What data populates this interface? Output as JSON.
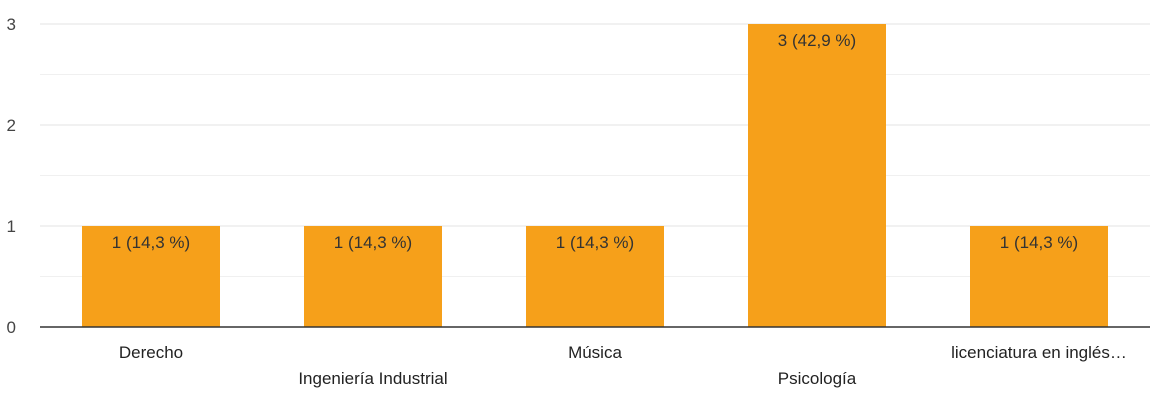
{
  "chart_data": {
    "type": "bar",
    "categories": [
      "Derecho",
      "Ingeniería Industrial",
      "Música",
      "Psicología",
      "licenciatura en inglés…"
    ],
    "values": [
      1,
      1,
      1,
      3,
      1
    ],
    "data_labels": [
      "1 (14,3 %)",
      "1 (14,3 %)",
      "1 (14,3 %)",
      "3 (42,9 %)",
      "1 (14,3 %)"
    ],
    "yticks": [
      "0",
      "1",
      "2",
      "3"
    ],
    "ylim": [
      0,
      3
    ],
    "grid": true,
    "bar_color": "#f6a01a",
    "title": "",
    "xlabel": "",
    "ylabel": ""
  }
}
